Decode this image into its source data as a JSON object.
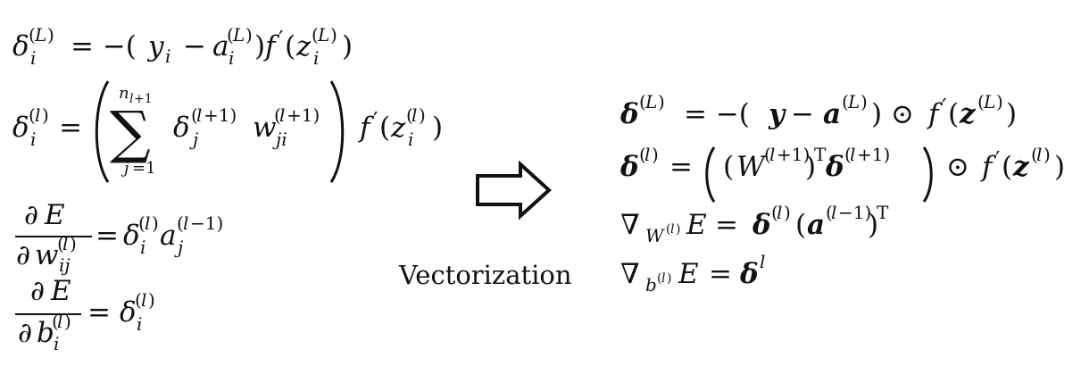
{
  "left_equations": [
    "δ_i^(L) = −(y_i − a_i^(L)) f′(z_i^(L))",
    "δ_i^(l) = ( Σ_{j=1}^{n_{l+1}} δ_j^(l+1) w_{ji}^(l+1) ) f′(z_i^(l))",
    "∂E/∂w_{ij}^(l) = δ_i^(l) a_j^(l−1)",
    "∂E/∂b_i^(l) = δ_i^(l)"
  ],
  "right_equations": [
    "δ^(L) = −(y − a^(L)) ⊙ f′(z^(L))",
    "δ^(l) = ((W^(l+1))^T δ^(l+1)) ⊙ f′(z^(l))",
    "∇_{W^(l)} E = δ^(l)(a^(l−1))^T",
    "∇_{b^(l)} E = δ^l"
  ],
  "transform_label": "Vectorization",
  "arrow_icon": "right-outline-arrow"
}
